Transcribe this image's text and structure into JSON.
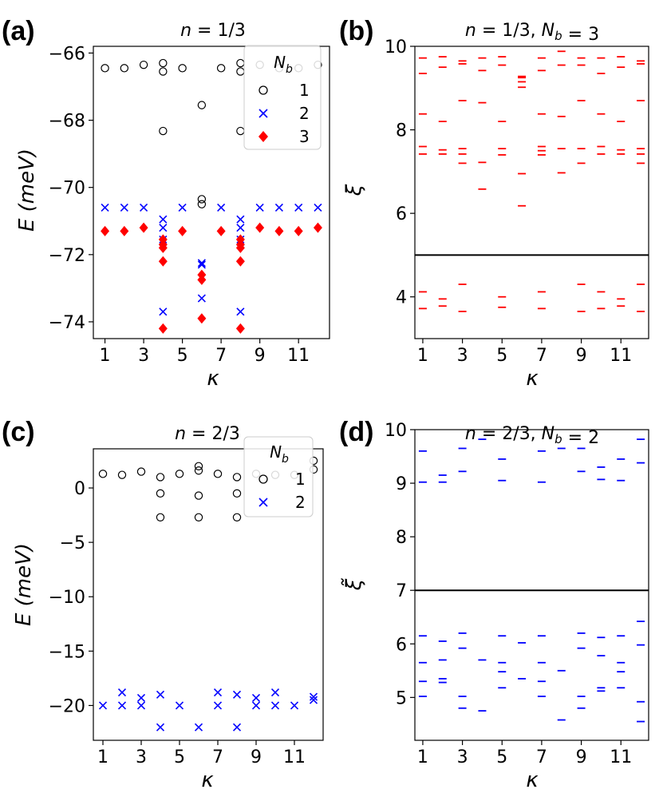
{
  "chart_data": [
    {
      "panel": "(a)",
      "type": "scatter",
      "title": "n = 1/3",
      "xlabel": "κ",
      "ylabel": "E (meV)",
      "xlim": [
        0.4,
        12.6
      ],
      "ylim": [
        -74.5,
        -65.8
      ],
      "xticks": [
        1,
        3,
        5,
        7,
        9,
        11
      ],
      "yticks": [
        -66,
        -68,
        -70,
        -72,
        -74
      ],
      "ytick_labels": [
        "−66",
        "−68",
        "−70",
        "−72",
        "−74"
      ],
      "legend": {
        "title": "N_b",
        "placement": "top-right",
        "entries": [
          "1",
          "2",
          "3"
        ]
      },
      "series": [
        {
          "name": "1",
          "marker": "circle",
          "color": "#000000",
          "points": [
            [
              1,
              -66.45
            ],
            [
              2,
              -66.45
            ],
            [
              3,
              -66.35
            ],
            [
              4,
              -66.3
            ],
            [
              4,
              -66.55
            ],
            [
              4,
              -68.32
            ],
            [
              5,
              -66.45
            ],
            [
              6,
              -67.55
            ],
            [
              6,
              -70.35
            ],
            [
              6,
              -70.5
            ],
            [
              7,
              -66.45
            ],
            [
              8,
              -66.3
            ],
            [
              8,
              -66.55
            ],
            [
              8,
              -68.32
            ],
            [
              9,
              -66.35
            ],
            [
              10,
              -66.45
            ],
            [
              11,
              -66.45
            ],
            [
              12,
              -66.35
            ]
          ]
        },
        {
          "name": "2",
          "marker": "x",
          "color": "#0000ff",
          "points": [
            [
              1,
              -70.6
            ],
            [
              2,
              -70.6
            ],
            [
              3,
              -70.6
            ],
            [
              4,
              -70.95
            ],
            [
              4,
              -71.2
            ],
            [
              4,
              -71.55
            ],
            [
              4,
              -73.7
            ],
            [
              5,
              -70.6
            ],
            [
              6,
              -72.25
            ],
            [
              6,
              -72.3
            ],
            [
              6,
              -73.3
            ],
            [
              7,
              -70.6
            ],
            [
              8,
              -70.95
            ],
            [
              8,
              -71.2
            ],
            [
              8,
              -71.55
            ],
            [
              8,
              -73.7
            ],
            [
              9,
              -70.6
            ],
            [
              10,
              -70.6
            ],
            [
              11,
              -70.6
            ],
            [
              12,
              -70.6
            ]
          ]
        },
        {
          "name": "3",
          "marker": "diamond",
          "color": "#ff0000",
          "points": [
            [
              1,
              -71.3
            ],
            [
              2,
              -71.3
            ],
            [
              3,
              -71.2
            ],
            [
              4,
              -71.55
            ],
            [
              4,
              -71.7
            ],
            [
              4,
              -71.8
            ],
            [
              4,
              -72.2
            ],
            [
              4,
              -74.2
            ],
            [
              5,
              -71.3
            ],
            [
              6,
              -72.6
            ],
            [
              6,
              -72.75
            ],
            [
              6,
              -73.9
            ],
            [
              7,
              -71.3
            ],
            [
              8,
              -71.55
            ],
            [
              8,
              -71.7
            ],
            [
              8,
              -71.8
            ],
            [
              8,
              -72.2
            ],
            [
              8,
              -74.2
            ],
            [
              9,
              -71.2
            ],
            [
              10,
              -71.3
            ],
            [
              11,
              -71.3
            ],
            [
              12,
              -71.2
            ]
          ]
        }
      ]
    },
    {
      "panel": "(b)",
      "type": "scatter",
      "title": "n = 1/3, N_b = 3",
      "xlabel": "κ",
      "ylabel": "ξ",
      "xlim": [
        0.6,
        12.4
      ],
      "ylim": [
        3,
        10
      ],
      "xticks": [
        1,
        3,
        5,
        7,
        9,
        11
      ],
      "yticks": [
        4,
        6,
        8,
        10
      ],
      "hline": 5.0,
      "marker": "dash",
      "color": "#ff0000",
      "points": [
        [
          1,
          9.72
        ],
        [
          1,
          9.35
        ],
        [
          1,
          8.38
        ],
        [
          1,
          7.6
        ],
        [
          1,
          7.42
        ],
        [
          1,
          4.12
        ],
        [
          1,
          3.72
        ],
        [
          2,
          9.75
        ],
        [
          2,
          9.5
        ],
        [
          2,
          8.2
        ],
        [
          2,
          7.52
        ],
        [
          2,
          7.42
        ],
        [
          2,
          3.95
        ],
        [
          2,
          3.78
        ],
        [
          3,
          9.65
        ],
        [
          3,
          9.58
        ],
        [
          3,
          8.7
        ],
        [
          3,
          7.55
        ],
        [
          3,
          7.42
        ],
        [
          3,
          7.2
        ],
        [
          3,
          4.3
        ],
        [
          3,
          3.65
        ],
        [
          4,
          9.72
        ],
        [
          4,
          9.42
        ],
        [
          4,
          8.65
        ],
        [
          4,
          7.22
        ],
        [
          4,
          6.58
        ],
        [
          5,
          9.75
        ],
        [
          5,
          9.55
        ],
        [
          5,
          8.2
        ],
        [
          5,
          7.55
        ],
        [
          5,
          7.4
        ],
        [
          5,
          4.0
        ],
        [
          5,
          3.75
        ],
        [
          6,
          9.28
        ],
        [
          6,
          9.25
        ],
        [
          6,
          9.15
        ],
        [
          6,
          9.02
        ],
        [
          6,
          6.95
        ],
        [
          6,
          6.18
        ],
        [
          7,
          9.72
        ],
        [
          7,
          9.42
        ],
        [
          7,
          8.38
        ],
        [
          7,
          7.6
        ],
        [
          7,
          7.5
        ],
        [
          7,
          7.4
        ],
        [
          7,
          4.12
        ],
        [
          7,
          3.72
        ],
        [
          8,
          9.88
        ],
        [
          8,
          9.55
        ],
        [
          8,
          8.32
        ],
        [
          8,
          7.55
        ],
        [
          8,
          6.97
        ],
        [
          9,
          9.72
        ],
        [
          9,
          9.55
        ],
        [
          9,
          8.7
        ],
        [
          9,
          7.55
        ],
        [
          9,
          7.2
        ],
        [
          9,
          4.3
        ],
        [
          9,
          3.65
        ],
        [
          10,
          9.72
        ],
        [
          10,
          9.35
        ],
        [
          10,
          8.38
        ],
        [
          10,
          7.6
        ],
        [
          10,
          7.42
        ],
        [
          10,
          4.12
        ],
        [
          10,
          3.72
        ],
        [
          11,
          9.75
        ],
        [
          11,
          9.5
        ],
        [
          11,
          8.2
        ],
        [
          11,
          7.52
        ],
        [
          11,
          7.42
        ],
        [
          11,
          3.95
        ],
        [
          11,
          3.78
        ],
        [
          12,
          9.65
        ],
        [
          12,
          9.58
        ],
        [
          12,
          8.7
        ],
        [
          12,
          7.55
        ],
        [
          12,
          7.42
        ],
        [
          12,
          7.2
        ],
        [
          12,
          4.3
        ],
        [
          12,
          3.65
        ]
      ]
    },
    {
      "panel": "(c)",
      "type": "scatter",
      "title": "n = 2/3",
      "xlabel": "κ",
      "ylabel": "E (meV)",
      "xlim": [
        0.5,
        12.5
      ],
      "ylim": [
        -23.2,
        3.6
      ],
      "xticks": [
        1,
        3,
        5,
        7,
        9,
        11
      ],
      "yticks": [
        0,
        -5,
        -10,
        -15,
        -20
      ],
      "ytick_labels": [
        "0",
        "−5",
        "−10",
        "−15",
        "−20"
      ],
      "legend": {
        "title": "N_b",
        "placement": "top-right",
        "entries": [
          "1",
          "2"
        ]
      },
      "series": [
        {
          "name": "1",
          "marker": "circle",
          "color": "#000000",
          "points": [
            [
              1,
              1.3
            ],
            [
              2,
              1.2
            ],
            [
              3,
              1.5
            ],
            [
              4,
              1.0
            ],
            [
              4,
              -0.5
            ],
            [
              4,
              -2.7
            ],
            [
              5,
              1.3
            ],
            [
              6,
              2.0
            ],
            [
              6,
              1.6
            ],
            [
              6,
              -0.7
            ],
            [
              6,
              -2.7
            ],
            [
              7,
              1.3
            ],
            [
              8,
              1.0
            ],
            [
              8,
              -0.5
            ],
            [
              8,
              -2.7
            ],
            [
              9,
              1.3
            ],
            [
              10,
              1.2
            ],
            [
              11,
              1.2
            ],
            [
              12,
              2.5
            ],
            [
              12,
              1.7
            ]
          ]
        },
        {
          "name": "2",
          "marker": "x",
          "color": "#0000ff",
          "points": [
            [
              1,
              -20.0
            ],
            [
              2,
              -18.8
            ],
            [
              2,
              -20.0
            ],
            [
              3,
              -19.3
            ],
            [
              3,
              -20.0
            ],
            [
              4,
              -19.0
            ],
            [
              4,
              -22.0
            ],
            [
              5,
              -20.0
            ],
            [
              6,
              -22.0
            ],
            [
              7,
              -18.8
            ],
            [
              7,
              -20.0
            ],
            [
              8,
              -19.0
            ],
            [
              8,
              -22.0
            ],
            [
              9,
              -19.3
            ],
            [
              9,
              -20.0
            ],
            [
              10,
              -18.8
            ],
            [
              10,
              -20.0
            ],
            [
              11,
              -20.0
            ],
            [
              12,
              -19.2
            ],
            [
              12,
              -19.5
            ]
          ]
        }
      ]
    },
    {
      "panel": "(d)",
      "type": "scatter",
      "title": "n = 2/3, N_b = 2",
      "xlabel": "κ",
      "ylabel": "ξ̃",
      "xlim": [
        0.6,
        12.4
      ],
      "ylim": [
        4.2,
        10
      ],
      "xticks": [
        1,
        3,
        5,
        7,
        9,
        11
      ],
      "yticks": [
        5,
        6,
        7,
        8,
        9,
        10
      ],
      "hline": 7.0,
      "marker": "dash",
      "color": "#0000ff",
      "points": [
        [
          1,
          9.6
        ],
        [
          1,
          9.02
        ],
        [
          1,
          6.15
        ],
        [
          1,
          5.65
        ],
        [
          1,
          5.3
        ],
        [
          1,
          5.02
        ],
        [
          2,
          9.15
        ],
        [
          2,
          9.02
        ],
        [
          2,
          6.05
        ],
        [
          2,
          5.7
        ],
        [
          2,
          5.35
        ],
        [
          2,
          5.28
        ],
        [
          3,
          9.65
        ],
        [
          3,
          9.22
        ],
        [
          3,
          6.2
        ],
        [
          3,
          5.92
        ],
        [
          3,
          5.02
        ],
        [
          3,
          4.8
        ],
        [
          4,
          9.82
        ],
        [
          4,
          5.7
        ],
        [
          4,
          4.75
        ],
        [
          5,
          9.45
        ],
        [
          5,
          9.05
        ],
        [
          5,
          6.15
        ],
        [
          5,
          5.65
        ],
        [
          5,
          5.48
        ],
        [
          5,
          5.18
        ],
        [
          6,
          6.02
        ],
        [
          6,
          5.35
        ],
        [
          7,
          9.6
        ],
        [
          7,
          9.02
        ],
        [
          7,
          6.15
        ],
        [
          7,
          5.65
        ],
        [
          7,
          5.3
        ],
        [
          7,
          5.02
        ],
        [
          8,
          9.65
        ],
        [
          8,
          5.5
        ],
        [
          8,
          4.58
        ],
        [
          9,
          9.65
        ],
        [
          9,
          9.22
        ],
        [
          9,
          6.2
        ],
        [
          9,
          5.92
        ],
        [
          9,
          5.02
        ],
        [
          9,
          4.8
        ],
        [
          10,
          9.3
        ],
        [
          10,
          9.07
        ],
        [
          10,
          6.12
        ],
        [
          10,
          5.78
        ],
        [
          10,
          5.18
        ],
        [
          10,
          5.12
        ],
        [
          11,
          9.45
        ],
        [
          11,
          9.05
        ],
        [
          11,
          6.15
        ],
        [
          11,
          5.65
        ],
        [
          11,
          5.48
        ],
        [
          11,
          5.18
        ],
        [
          12,
          9.82
        ],
        [
          12,
          9.38
        ],
        [
          12,
          6.42
        ],
        [
          12,
          5.98
        ],
        [
          12,
          4.92
        ],
        [
          12,
          4.55
        ]
      ]
    }
  ]
}
